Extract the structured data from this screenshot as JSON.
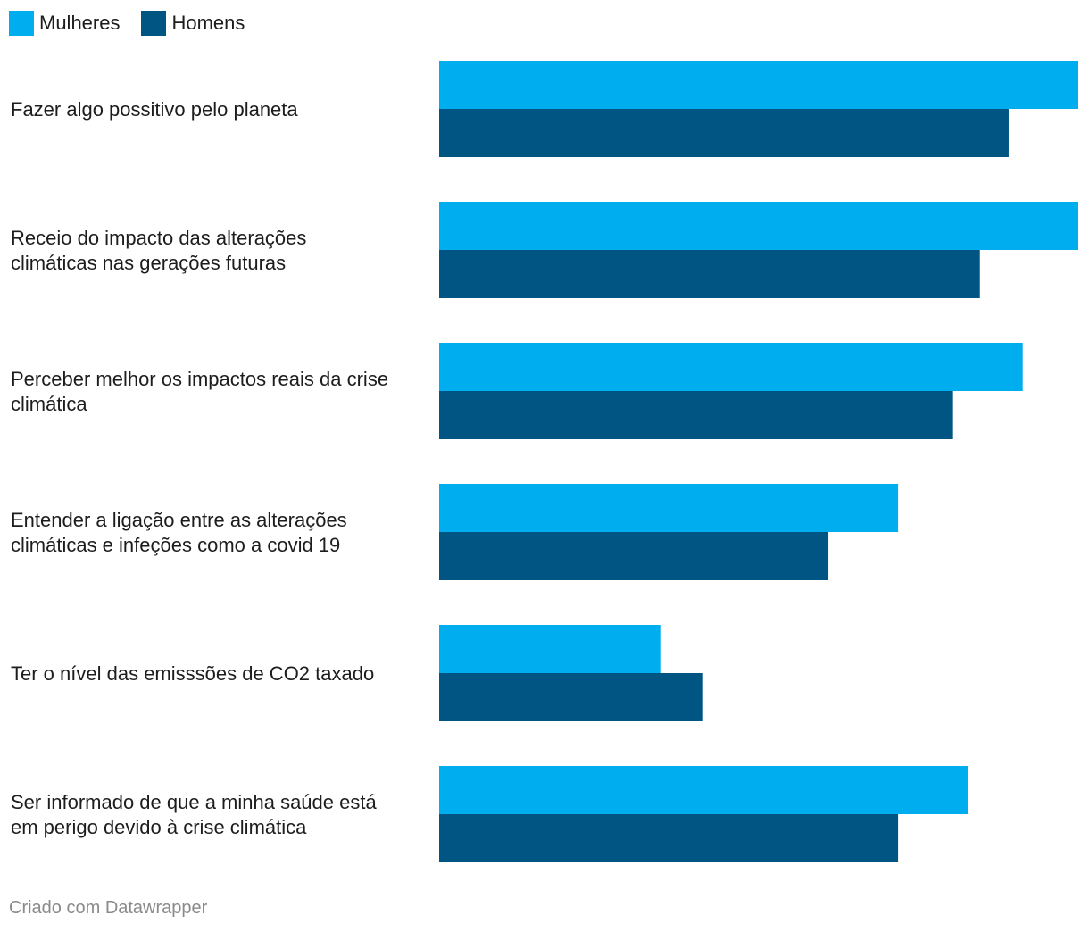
{
  "legend": {
    "women_label": "Mulheres",
    "men_label": "Homens"
  },
  "colors": {
    "women": "#00adef",
    "men": "#005583"
  },
  "footer": {
    "credit": "Criado com Datawrapper"
  },
  "chart_data": {
    "type": "bar",
    "orientation": "horizontal",
    "categories": [
      [
        "Fazer algo possitivo pelo planeta"
      ],
      [
        "Receio do impacto das alterações",
        "climáticas nas gerações futuras"
      ],
      [
        "Perceber melhor os impactos reais da crise",
        "climática"
      ],
      [
        "Entender a ligação entre as alterações",
        "climáticas e infeções como a covid 19"
      ],
      [
        "Ter o nível das emisssões de CO2 taxado"
      ],
      [
        "Ser informado de que a minha saúde está",
        "em perigo devido à crise climática"
      ]
    ],
    "series": [
      {
        "name": "Mulheres",
        "values": [
          100,
          100,
          91.3,
          71.8,
          34.6,
          82.7
        ]
      },
      {
        "name": "Homens",
        "values": [
          89.1,
          84.6,
          80.4,
          60.9,
          41.3,
          71.8
        ]
      }
    ],
    "xlim": [
      0,
      100
    ],
    "grid": false,
    "legend_position": "top-left"
  }
}
